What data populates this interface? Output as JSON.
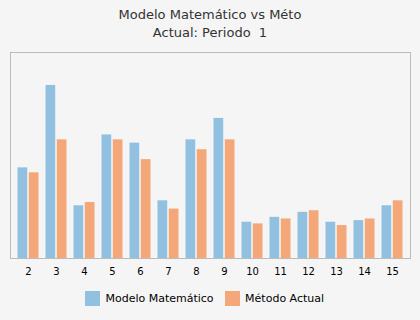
{
  "chart_data": {
    "type": "bar",
    "title": "Modelo Matemático vs Méto\nActual: Periodo  1",
    "categories": [
      2,
      3,
      4,
      5,
      6,
      7,
      8,
      9,
      10,
      11,
      12,
      13,
      14,
      15
    ],
    "series": [
      {
        "name": "Modelo Matemático",
        "color": "#92C0E0",
        "values": [
          5.5,
          10.5,
          3.2,
          7.5,
          7.0,
          3.5,
          7.2,
          8.5,
          2.2,
          2.5,
          2.8,
          2.2,
          2.3,
          3.2
        ]
      },
      {
        "name": "Método Actual",
        "color": "#F4A87A",
        "values": [
          5.2,
          7.2,
          3.4,
          7.2,
          6.0,
          3.0,
          6.6,
          7.2,
          2.1,
          2.4,
          2.9,
          2.0,
          2.4,
          3.5
        ]
      }
    ],
    "ylim": [
      0,
      12.5
    ],
    "grid": false,
    "tick_labels": "x",
    "legend": "bottom"
  }
}
